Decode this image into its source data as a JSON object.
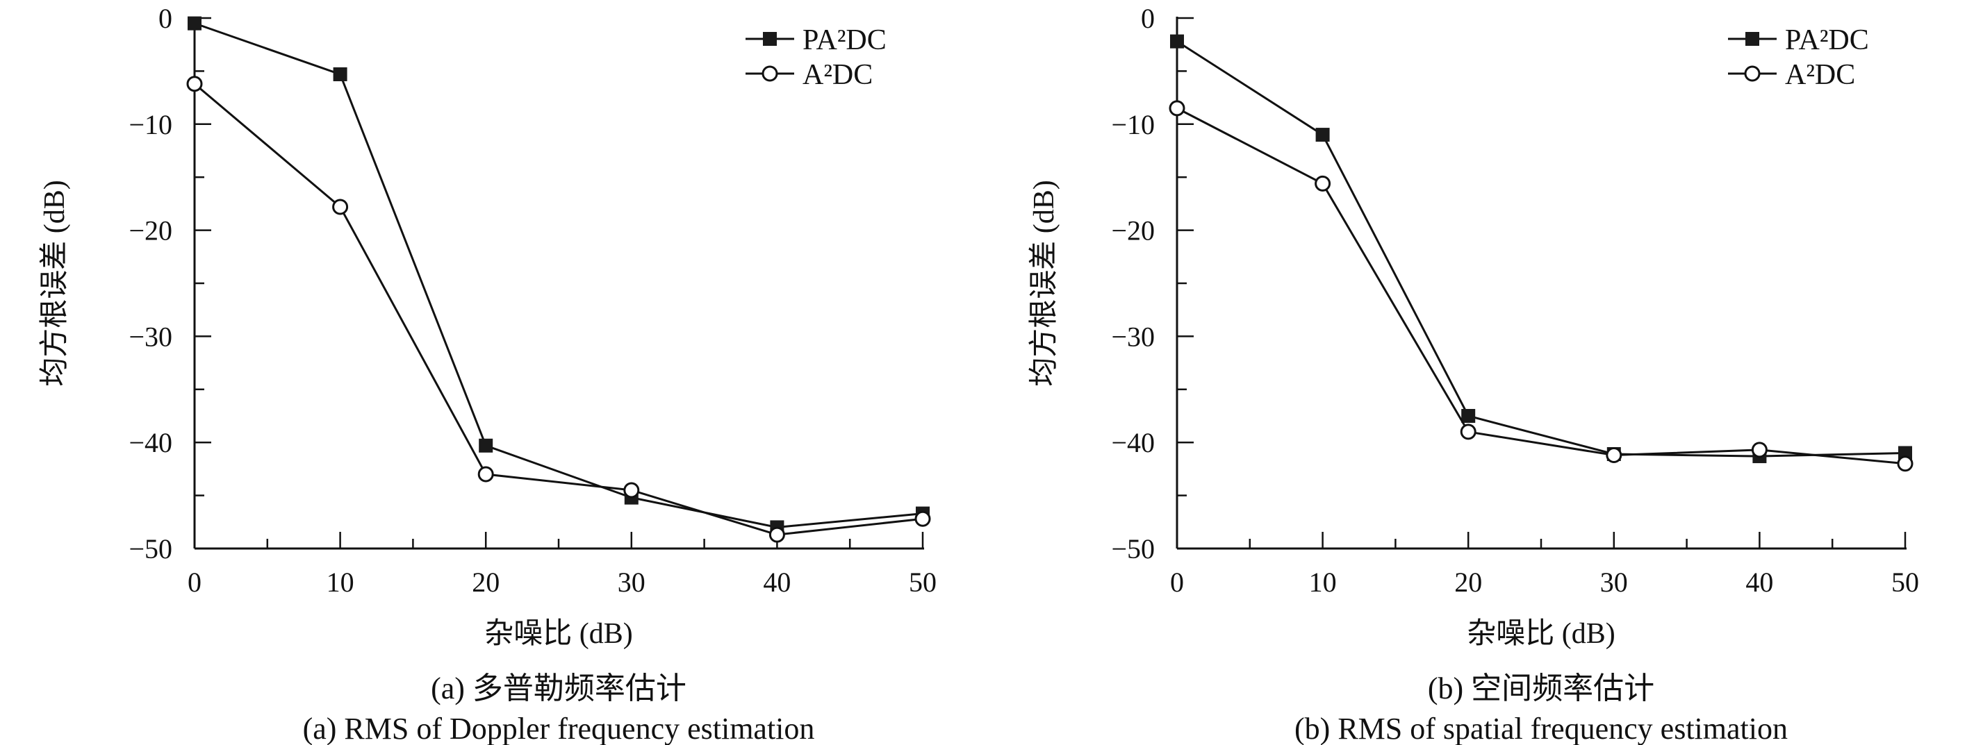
{
  "chart_data": [
    {
      "type": "line",
      "caption_cn": "(a) 多普勒频率估计",
      "caption_en": "(a) RMS of Doppler frequency estimation",
      "xlabel": "杂噪比 (dB)",
      "ylabel": "均方根误差 (dB)",
      "xlim": [
        0,
        50
      ],
      "ylim": [
        -50,
        0
      ],
      "xticks": [
        "0",
        "10",
        "20",
        "30",
        "40",
        "50"
      ],
      "yticks": [
        "0",
        "−10",
        "−20",
        "−30",
        "−40",
        "−50"
      ],
      "grid": false,
      "legend_position": "top-right",
      "x": [
        0,
        10,
        20,
        30,
        40,
        50
      ],
      "series": [
        {
          "name": "PA²DC",
          "marker": "filled-square",
          "values": [
            -0.5,
            -5.3,
            -40.3,
            -45.2,
            -48.0,
            -46.7
          ]
        },
        {
          "name": "A²DC",
          "marker": "open-circle",
          "values": [
            -6.2,
            -17.8,
            -43.0,
            -44.5,
            -48.7,
            -47.2
          ]
        }
      ]
    },
    {
      "type": "line",
      "caption_cn": "(b) 空间频率估计",
      "caption_en": "(b) RMS of spatial frequency estimation",
      "xlabel": "杂噪比 (dB)",
      "ylabel": "均方根误差 (dB)",
      "xlim": [
        0,
        50
      ],
      "ylim": [
        -50,
        0
      ],
      "xticks": [
        "0",
        "10",
        "20",
        "30",
        "40",
        "50"
      ],
      "yticks": [
        "0",
        "−10",
        "−20",
        "−30",
        "−40",
        "−50"
      ],
      "grid": false,
      "legend_position": "top-right",
      "x": [
        0,
        10,
        20,
        30,
        40,
        50
      ],
      "series": [
        {
          "name": "PA²DC",
          "marker": "filled-square",
          "values": [
            -2.2,
            -11.0,
            -37.5,
            -41.1,
            -41.3,
            -41.0
          ]
        },
        {
          "name": "A²DC",
          "marker": "open-circle",
          "values": [
            -8.5,
            -15.6,
            -39.0,
            -41.2,
            -40.7,
            -42.0
          ]
        }
      ]
    }
  ]
}
